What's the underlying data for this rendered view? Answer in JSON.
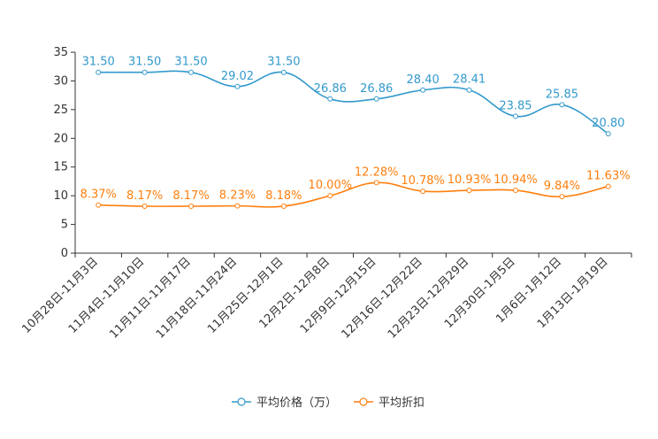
{
  "chart_data": {
    "type": "line",
    "title": "",
    "xlabel": "",
    "ylabel": "",
    "ylim": [
      0,
      35
    ],
    "yticks": [
      0,
      5,
      10,
      15,
      20,
      25,
      30,
      35
    ],
    "grid": false,
    "legend_position": "bottom-center",
    "categories": [
      "10月28日-11月3日",
      "11月4日-11月10日",
      "11月11日-11月17日",
      "11月18日-11月24日",
      "11月25日-12月1日",
      "12月2日-12月8日",
      "12月9日-12月15日",
      "12月16日-12月22日",
      "12月23日-12月29日",
      "12月30日-1月5日",
      "1月6日-1月12日",
      "1月13日-1月19日"
    ],
    "series": [
      {
        "name": "平均价格（万）",
        "color": "#3399cc",
        "values": [
          31.5,
          31.5,
          31.5,
          29.02,
          31.5,
          26.86,
          26.86,
          28.4,
          28.41,
          23.85,
          25.85,
          20.8
        ],
        "labels": [
          "31.50",
          "31.50",
          "31.50",
          "29.02",
          "31.50",
          "26.86",
          "26.86",
          "28.40",
          "28.41",
          "23.85",
          "25.85",
          "20.80"
        ]
      },
      {
        "name": "平均折扣",
        "color": "#ff7f0e",
        "values": [
          8.37,
          8.17,
          8.17,
          8.23,
          8.18,
          10.0,
          12.28,
          10.78,
          10.93,
          10.94,
          9.84,
          11.63
        ],
        "labels": [
          "8.37%",
          "8.17%",
          "8.17%",
          "8.23%",
          "8.18%",
          "10.00%",
          "12.28%",
          "10.78%",
          "10.93%",
          "10.94%",
          "9.84%",
          "11.63%"
        ]
      }
    ]
  }
}
